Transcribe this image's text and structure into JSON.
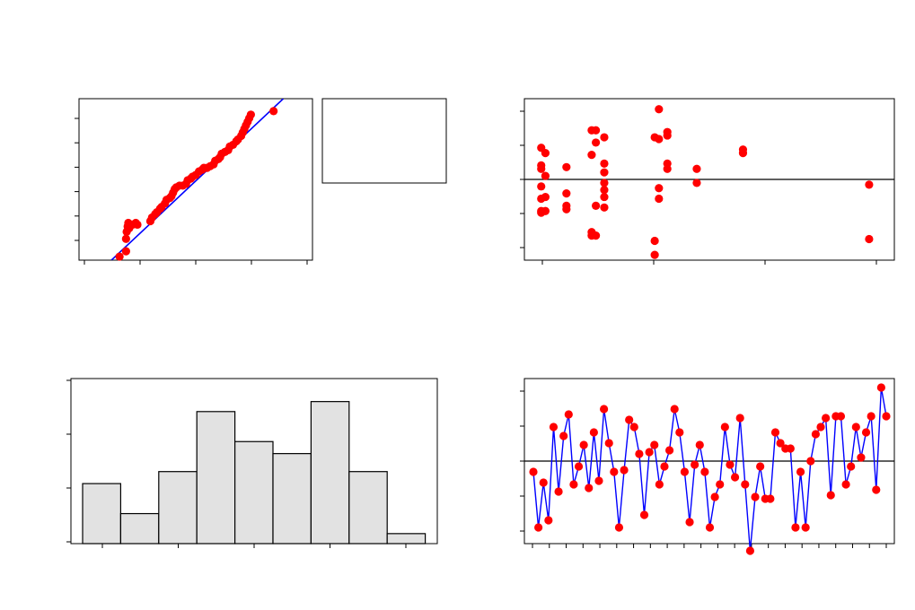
{
  "colors": {
    "points": "#ff0000",
    "line": "#0000ff",
    "bar_fill": "#e2e2e2",
    "axis": "#000000",
    "background": "#ffffff"
  },
  "chart_data": [
    {
      "type": "scatter",
      "panel": "normal-probability-plot",
      "xlim": [
        -3.3,
        3.9
      ],
      "ylim": [
        0.08,
        0.99
      ],
      "x_tick_count": 5,
      "y_tick_count": 6,
      "fit_line": {
        "x": [
          -2.3,
          3.0
        ]
      },
      "points": [
        [
          -2.05,
          0.1
        ],
        [
          -1.85,
          0.13
        ],
        [
          -1.85,
          0.2
        ],
        [
          -1.83,
          0.24
        ],
        [
          -1.8,
          0.27
        ],
        [
          -1.78,
          0.29
        ],
        [
          -1.75,
          0.26
        ],
        [
          -1.65,
          0.28
        ],
        [
          -1.55,
          0.29
        ],
        [
          -1.5,
          0.28
        ],
        [
          -1.1,
          0.3
        ],
        [
          -1.05,
          0.32
        ],
        [
          -0.95,
          0.34
        ],
        [
          -0.9,
          0.35
        ],
        [
          -0.8,
          0.37
        ],
        [
          -0.75,
          0.38
        ],
        [
          -0.65,
          0.4
        ],
        [
          -0.6,
          0.42
        ],
        [
          -0.5,
          0.43
        ],
        [
          -0.45,
          0.44
        ],
        [
          -0.4,
          0.46
        ],
        [
          -0.35,
          0.48
        ],
        [
          -0.3,
          0.49
        ],
        [
          -0.2,
          0.5
        ],
        [
          -0.1,
          0.5
        ],
        [
          0.0,
          0.51
        ],
        [
          0.05,
          0.53
        ],
        [
          0.15,
          0.54
        ],
        [
          0.2,
          0.55
        ],
        [
          0.3,
          0.56
        ],
        [
          0.4,
          0.58
        ],
        [
          0.5,
          0.59
        ],
        [
          0.55,
          0.6
        ],
        [
          0.65,
          0.6
        ],
        [
          0.75,
          0.61
        ],
        [
          0.85,
          0.62
        ],
        [
          0.9,
          0.64
        ],
        [
          1.0,
          0.65
        ],
        [
          1.05,
          0.66
        ],
        [
          1.1,
          0.68
        ],
        [
          1.2,
          0.69
        ],
        [
          1.3,
          0.7
        ],
        [
          1.35,
          0.72
        ],
        [
          1.45,
          0.73
        ],
        [
          1.55,
          0.75
        ],
        [
          1.6,
          0.76
        ],
        [
          1.7,
          0.78
        ],
        [
          1.75,
          0.8
        ],
        [
          1.8,
          0.82
        ],
        [
          1.85,
          0.84
        ],
        [
          1.9,
          0.86
        ],
        [
          1.95,
          0.88
        ],
        [
          2.0,
          0.9
        ],
        [
          2.7,
          0.92
        ]
      ]
    },
    {
      "type": "scatter",
      "panel": "residuals-vs-fits",
      "xlim": [
        -0.2,
        4.2
      ],
      "ylim": [
        -4.6,
        4.6
      ],
      "reference_line": 0,
      "x_tick_count": 4,
      "y_tick_count": 5,
      "points": [
        [
          0.0,
          1.8
        ],
        [
          0.0,
          0.8
        ],
        [
          0.0,
          0.6
        ],
        [
          0.0,
          -0.4
        ],
        [
          0.0,
          -1.1
        ],
        [
          0.0,
          -1.8
        ],
        [
          0.0,
          -1.9
        ],
        [
          0.05,
          1.5
        ],
        [
          0.05,
          0.2
        ],
        [
          0.05,
          -1.0
        ],
        [
          0.05,
          -1.8
        ],
        [
          0.3,
          0.7
        ],
        [
          0.3,
          -0.8
        ],
        [
          0.3,
          -1.5
        ],
        [
          0.3,
          -1.7
        ],
        [
          0.6,
          2.8
        ],
        [
          0.6,
          1.4
        ],
        [
          0.6,
          -3.0
        ],
        [
          0.6,
          -3.2
        ],
        [
          0.65,
          2.8
        ],
        [
          0.65,
          2.1
        ],
        [
          0.65,
          -1.5
        ],
        [
          0.65,
          -3.2
        ],
        [
          0.75,
          2.4
        ],
        [
          0.75,
          0.9
        ],
        [
          0.75,
          0.4
        ],
        [
          0.75,
          -0.2
        ],
        [
          0.75,
          -0.6
        ],
        [
          0.75,
          -1.0
        ],
        [
          0.75,
          -1.6
        ],
        [
          1.35,
          2.4
        ],
        [
          1.35,
          -3.5
        ],
        [
          1.35,
          -4.3
        ],
        [
          1.4,
          4.0
        ],
        [
          1.4,
          2.3
        ],
        [
          1.4,
          -0.5
        ],
        [
          1.4,
          -1.1
        ],
        [
          1.5,
          2.5
        ],
        [
          1.5,
          2.7
        ],
        [
          1.5,
          0.6
        ],
        [
          1.5,
          0.9
        ],
        [
          1.85,
          0.6
        ],
        [
          1.85,
          -0.2
        ],
        [
          2.4,
          1.7
        ],
        [
          2.4,
          1.5
        ],
        [
          3.9,
          -0.3
        ],
        [
          3.9,
          -3.4
        ]
      ]
    },
    {
      "type": "bar",
      "panel": "histogram",
      "values": [
        6,
        3,
        7.2,
        13.2,
        10.2,
        9,
        14.2,
        7.2,
        1
      ],
      "ylim": [
        0,
        16.5
      ],
      "y_tick_count": 4,
      "x_tick_count": 5
    },
    {
      "type": "line",
      "panel": "residuals-vs-order",
      "ylim": [
        -4.6,
        4.6
      ],
      "reference_line": 0,
      "x_tick_count": 22,
      "y_tick_count": 5,
      "values": [
        -0.6,
        -3.7,
        -1.2,
        -3.3,
        1.9,
        -1.7,
        1.4,
        2.6,
        -1.3,
        -0.3,
        0.9,
        -1.5,
        1.6,
        -1.1,
        2.9,
        1.0,
        -0.6,
        -3.7,
        -0.5,
        2.3,
        1.9,
        0.4,
        -3.0,
        0.5,
        0.9,
        -1.3,
        -0.3,
        0.6,
        2.9,
        1.6,
        -0.6,
        -3.4,
        -0.2,
        0.9,
        -0.6,
        -3.7,
        -2.0,
        -1.3,
        1.9,
        -0.2,
        -0.9,
        2.4,
        -1.3,
        -5.0,
        -2.0,
        -0.3,
        -2.1,
        -2.1,
        1.6,
        1.0,
        0.7,
        0.7,
        -3.7,
        -0.6,
        -3.7,
        0.0,
        1.5,
        1.9,
        2.4,
        -1.9,
        2.5,
        2.5,
        -1.3,
        -0.3,
        1.9,
        0.2,
        1.6,
        2.5,
        -1.6,
        4.1,
        2.5
      ]
    }
  ]
}
